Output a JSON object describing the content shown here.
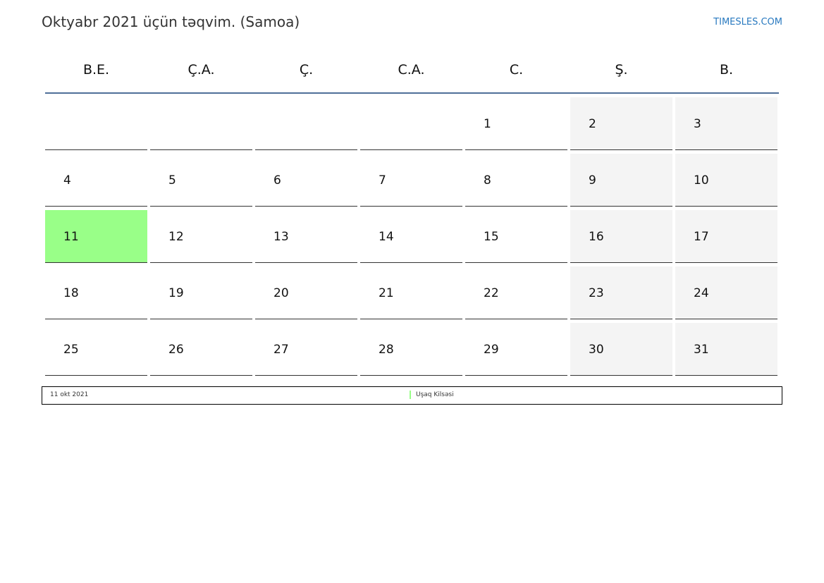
{
  "header": {
    "title": "Oktyabr 2021 üçün təqvim. (Samoa)",
    "brand": "TIMESLES.COM"
  },
  "weekdays": [
    "B.E.",
    "Ç.A.",
    "Ç.",
    "C.A.",
    "C.",
    "Ş.",
    "B."
  ],
  "weeks": [
    [
      null,
      null,
      null,
      null,
      "1",
      "2",
      "3"
    ],
    [
      "4",
      "5",
      "6",
      "7",
      "8",
      "9",
      "10"
    ],
    [
      "11",
      "12",
      "13",
      "14",
      "15",
      "16",
      "17"
    ],
    [
      "18",
      "19",
      "20",
      "21",
      "22",
      "23",
      "24"
    ],
    [
      "25",
      "26",
      "27",
      "28",
      "29",
      "30",
      "31"
    ]
  ],
  "highlighted_day": "11",
  "colors": {
    "highlight": "#99ff88",
    "weekend": "#f4f4f4",
    "header_rule": "#4f6f99",
    "brand": "#2a7ac0"
  },
  "legend": {
    "date": "11 okt 2021",
    "event": "Uşaq Kilsəsi"
  }
}
